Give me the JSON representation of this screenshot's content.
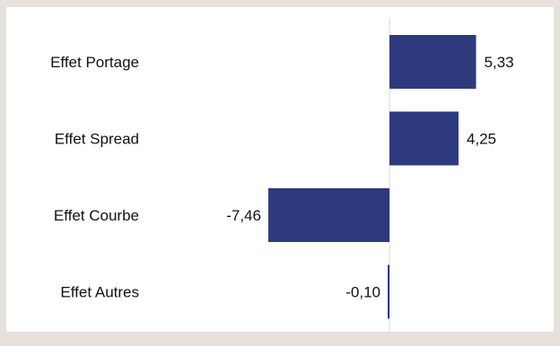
{
  "chart_data": {
    "type": "bar",
    "orientation": "horizontal",
    "categories": [
      "Effet Portage",
      "Effet Spread",
      "Effet Courbe",
      "Effet Autres"
    ],
    "values": [
      5.33,
      4.25,
      -7.46,
      -0.1
    ],
    "value_labels": [
      "5,33",
      "4,25",
      "-7,46",
      "-0,10"
    ],
    "title": "",
    "xlabel": "",
    "ylabel": "",
    "xlim": [
      -8,
      10
    ],
    "grid": false,
    "legend": "none",
    "bar_color": "#2e3a7e",
    "axis_color": "#d9d9d9"
  }
}
